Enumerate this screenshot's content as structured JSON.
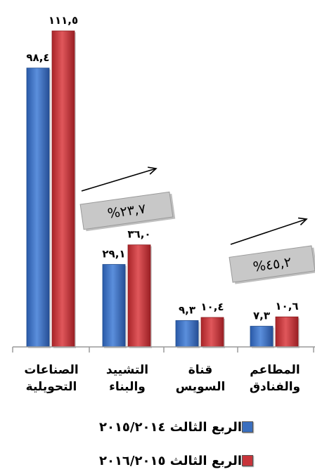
{
  "chart_data": {
    "type": "bar",
    "categories": [
      "الصناعات\nالتحويلية",
      "التشييد\nوالبناء",
      "قناة\nالسويس",
      "المطاعم\nوالفنادق"
    ],
    "series": [
      {
        "name": "الربع الثالث ٢٠١٥/٢٠١٤",
        "values": [
          98.4,
          29.1,
          9.3,
          7.3
        ],
        "value_labels": [
          "٩٨,٤",
          "٢٩,١",
          "٩,٣",
          "٧,٣"
        ],
        "color": "#3a6fbf"
      },
      {
        "name": "الربع الثالث ٢٠١٦/٢٠١٥",
        "values": [
          111.5,
          36.0,
          10.4,
          10.6
        ],
        "value_labels": [
          "١١١,٥",
          "٣٦,٠",
          "١٠,٤",
          "١٠,٦"
        ],
        "color": "#c8343a"
      }
    ],
    "annotations": [
      {
        "text": "%٢٣,٧",
        "category_index": 1
      },
      {
        "text": "%٤٥,٢",
        "category_index": 3
      }
    ],
    "ylim": [
      0,
      120
    ],
    "grid": false,
    "legend": "bottom"
  }
}
